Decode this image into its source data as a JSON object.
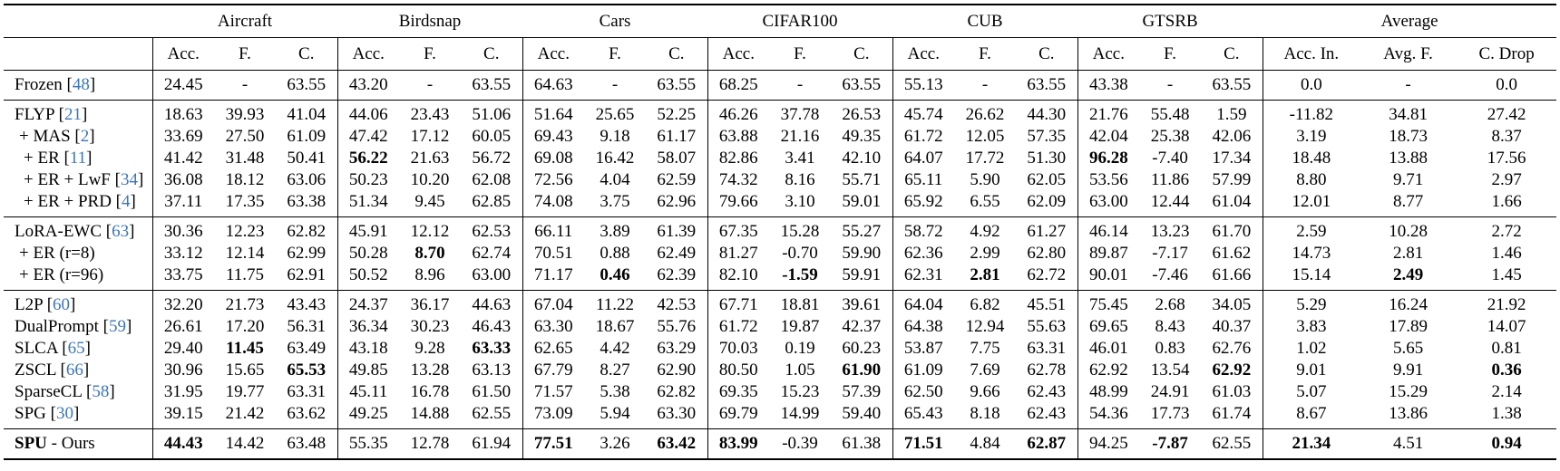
{
  "table": {
    "corner_label": "",
    "groups": [
      {
        "label": "Aircraft",
        "cols": [
          "Acc.",
          "F.",
          "C."
        ]
      },
      {
        "label": "Birdsnap",
        "cols": [
          "Acc.",
          "F.",
          "C."
        ]
      },
      {
        "label": "Cars",
        "cols": [
          "Acc.",
          "F.",
          "C."
        ]
      },
      {
        "label": "CIFAR100",
        "cols": [
          "Acc.",
          "F.",
          "C."
        ]
      },
      {
        "label": "CUB",
        "cols": [
          "Acc.",
          "F.",
          "C."
        ]
      },
      {
        "label": "GTSRB",
        "cols": [
          "Acc.",
          "F.",
          "C."
        ]
      },
      {
        "label": "Average",
        "cols": [
          "Acc. In.",
          "Avg. F.",
          "C. Drop"
        ]
      }
    ],
    "colors": {
      "citation": "#3d76b8",
      "text": "#000000",
      "rule": "#000000"
    },
    "blocks": [
      {
        "rows": [
          {
            "method": "Frozen",
            "cite": "48",
            "suffix": "",
            "method_bold": false,
            "indent": 0,
            "values": [
              "24.45",
              "-",
              "63.55",
              "43.20",
              "-",
              "63.55",
              "64.63",
              "-",
              "63.55",
              "68.25",
              "-",
              "63.55",
              "55.13",
              "-",
              "63.55",
              "43.38",
              "-",
              "63.55",
              "0.0",
              "-",
              "0.0"
            ],
            "bold": []
          }
        ]
      },
      {
        "rows": [
          {
            "method": "FLYP",
            "cite": "21",
            "suffix": "",
            "method_bold": false,
            "indent": 0,
            "values": [
              "18.63",
              "39.93",
              "41.04",
              "44.06",
              "23.43",
              "51.06",
              "51.64",
              "25.65",
              "52.25",
              "46.26",
              "37.78",
              "26.53",
              "45.74",
              "26.62",
              "44.30",
              "21.76",
              "55.48",
              "1.59",
              "-11.82",
              "34.81",
              "27.42"
            ],
            "bold": []
          },
          {
            "method": "+ MAS",
            "cite": "2",
            "suffix": "",
            "method_bold": false,
            "indent": 1,
            "values": [
              "33.69",
              "27.50",
              "61.09",
              "47.42",
              "17.12",
              "60.05",
              "69.43",
              "9.18",
              "61.17",
              "63.88",
              "21.16",
              "49.35",
              "61.72",
              "12.05",
              "57.35",
              "42.04",
              "25.38",
              "42.06",
              "3.19",
              "18.73",
              "8.37"
            ],
            "bold": []
          },
          {
            "method": "+ ER",
            "cite": "11",
            "suffix": "",
            "method_bold": false,
            "indent": 2,
            "values": [
              "41.42",
              "31.48",
              "50.41",
              "56.22",
              "21.63",
              "56.72",
              "69.08",
              "16.42",
              "58.07",
              "82.86",
              "3.41",
              "42.10",
              "64.07",
              "17.72",
              "51.30",
              "96.28",
              "-7.40",
              "17.34",
              "18.48",
              "13.88",
              "17.56"
            ],
            "bold": [
              3,
              15
            ]
          },
          {
            "method": "+ ER + LwF",
            "cite": "34",
            "suffix": "",
            "method_bold": false,
            "indent": 2,
            "values": [
              "36.08",
              "18.12",
              "63.06",
              "50.23",
              "10.20",
              "62.08",
              "72.56",
              "4.04",
              "62.59",
              "74.32",
              "8.16",
              "55.71",
              "65.11",
              "5.90",
              "62.05",
              "53.56",
              "11.86",
              "57.99",
              "8.80",
              "9.71",
              "2.97"
            ],
            "bold": []
          },
          {
            "method": "+ ER + PRD",
            "cite": "4",
            "suffix": "",
            "method_bold": false,
            "indent": 2,
            "values": [
              "37.11",
              "17.35",
              "63.38",
              "51.34",
              "9.45",
              "62.85",
              "74.08",
              "3.75",
              "62.96",
              "79.66",
              "3.10",
              "59.01",
              "65.92",
              "6.55",
              "62.09",
              "63.00",
              "12.44",
              "61.04",
              "12.01",
              "8.77",
              "1.66"
            ],
            "bold": []
          }
        ]
      },
      {
        "rows": [
          {
            "method": "LoRA-EWC",
            "cite": "63",
            "suffix": "",
            "method_bold": false,
            "indent": 0,
            "values": [
              "30.36",
              "12.23",
              "62.82",
              "45.91",
              "12.12",
              "62.53",
              "66.11",
              "3.89",
              "61.39",
              "67.35",
              "15.28",
              "55.27",
              "58.72",
              "4.92",
              "61.27",
              "46.14",
              "13.23",
              "61.70",
              "2.59",
              "10.28",
              "2.72"
            ],
            "bold": []
          },
          {
            "method": "+ ER (r=8)",
            "cite": null,
            "suffix": "",
            "method_bold": false,
            "indent": 1,
            "values": [
              "33.12",
              "12.14",
              "62.99",
              "50.28",
              "8.70",
              "62.74",
              "70.51",
              "0.88",
              "62.49",
              "81.27",
              "-0.70",
              "59.90",
              "62.36",
              "2.99",
              "62.80",
              "89.87",
              "-7.17",
              "61.62",
              "14.73",
              "2.81",
              "1.46"
            ],
            "bold": [
              4
            ]
          },
          {
            "method": "+ ER (r=96)",
            "cite": null,
            "suffix": "",
            "method_bold": false,
            "indent": 1,
            "values": [
              "33.75",
              "11.75",
              "62.91",
              "50.52",
              "8.96",
              "63.00",
              "71.17",
              "0.46",
              "62.39",
              "82.10",
              "-1.59",
              "59.91",
              "62.31",
              "2.81",
              "62.72",
              "90.01",
              "-7.46",
              "61.66",
              "15.14",
              "2.49",
              "1.45"
            ],
            "bold": [
              7,
              10,
              13,
              19
            ]
          }
        ]
      },
      {
        "rows": [
          {
            "method": "L2P",
            "cite": "60",
            "suffix": "",
            "method_bold": false,
            "indent": 0,
            "values": [
              "32.20",
              "21.73",
              "43.43",
              "24.37",
              "36.17",
              "44.63",
              "67.04",
              "11.22",
              "42.53",
              "67.71",
              "18.81",
              "39.61",
              "64.04",
              "6.82",
              "45.51",
              "75.45",
              "2.68",
              "34.05",
              "5.29",
              "16.24",
              "21.92"
            ],
            "bold": []
          },
          {
            "method": "DualPrompt",
            "cite": "59",
            "suffix": "",
            "method_bold": false,
            "indent": 0,
            "values": [
              "26.61",
              "17.20",
              "56.31",
              "36.34",
              "30.23",
              "46.43",
              "63.30",
              "18.67",
              "55.76",
              "61.72",
              "19.87",
              "42.37",
              "64.38",
              "12.94",
              "55.63",
              "69.65",
              "8.43",
              "40.37",
              "3.83",
              "17.89",
              "14.07"
            ],
            "bold": []
          },
          {
            "method": "SLCA",
            "cite": "65",
            "suffix": "",
            "method_bold": false,
            "indent": 0,
            "values": [
              "29.40",
              "11.45",
              "63.49",
              "43.18",
              "9.28",
              "63.33",
              "62.65",
              "4.42",
              "63.29",
              "70.03",
              "0.19",
              "60.23",
              "53.87",
              "7.75",
              "63.31",
              "46.01",
              "0.83",
              "62.76",
              "1.02",
              "5.65",
              "0.81"
            ],
            "bold": [
              1,
              5
            ]
          },
          {
            "method": "ZSCL",
            "cite": "66",
            "suffix": "",
            "method_bold": false,
            "indent": 0,
            "values": [
              "30.96",
              "15.65",
              "65.53",
              "49.85",
              "13.28",
              "63.13",
              "67.79",
              "8.27",
              "62.90",
              "80.50",
              "1.05",
              "61.90",
              "61.09",
              "7.69",
              "62.78",
              "62.92",
              "13.54",
              "62.92",
              "9.01",
              "9.91",
              "0.36"
            ],
            "bold": [
              2,
              11,
              17,
              20
            ]
          },
          {
            "method": "SparseCL",
            "cite": "58",
            "suffix": "",
            "method_bold": false,
            "indent": 0,
            "values": [
              "31.95",
              "19.77",
              "63.31",
              "45.11",
              "16.78",
              "61.50",
              "71.57",
              "5.38",
              "62.82",
              "69.35",
              "15.23",
              "57.39",
              "62.50",
              "9.66",
              "62.43",
              "48.99",
              "24.91",
              "61.03",
              "5.07",
              "15.29",
              "2.14"
            ],
            "bold": []
          },
          {
            "method": "SPG",
            "cite": "30",
            "suffix": "",
            "method_bold": false,
            "indent": 0,
            "values": [
              "39.15",
              "21.42",
              "63.62",
              "49.25",
              "14.88",
              "62.55",
              "73.09",
              "5.94",
              "63.30",
              "69.79",
              "14.99",
              "59.40",
              "65.43",
              "8.18",
              "62.43",
              "54.36",
              "17.73",
              "61.74",
              "8.67",
              "13.86",
              "1.38"
            ],
            "bold": []
          }
        ]
      },
      {
        "rows": [
          {
            "method": "SPU",
            "cite": null,
            "suffix": " - Ours",
            "method_bold": true,
            "indent": 0,
            "values": [
              "44.43",
              "14.42",
              "63.48",
              "55.35",
              "12.78",
              "61.94",
              "77.51",
              "3.26",
              "63.42",
              "83.99",
              "-0.39",
              "61.38",
              "71.51",
              "4.84",
              "62.87",
              "94.25",
              "-7.87",
              "62.55",
              "21.34",
              "4.51",
              "0.94"
            ],
            "bold": [
              0,
              6,
              8,
              9,
              12,
              14,
              16,
              18,
              20
            ]
          }
        ]
      }
    ]
  }
}
